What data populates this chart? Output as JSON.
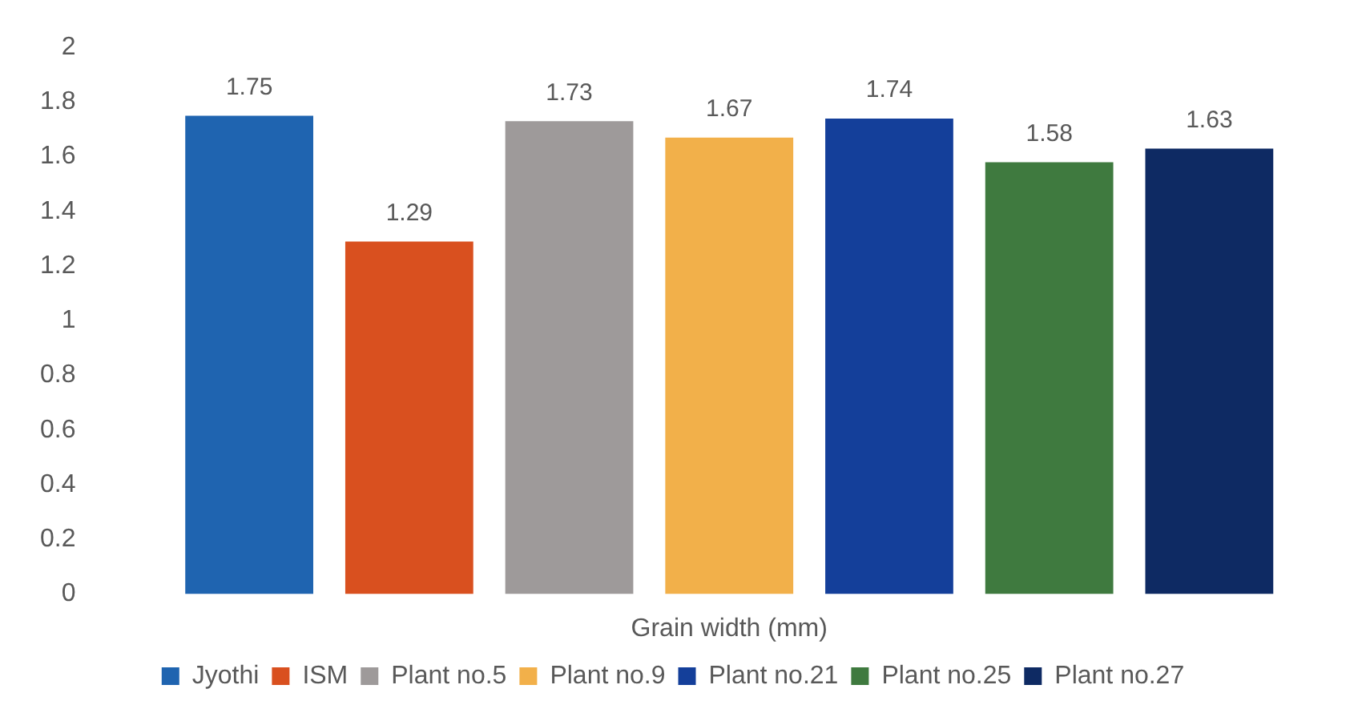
{
  "chart_data": {
    "type": "bar",
    "xlabel": "Grain width (mm)",
    "categories": [
      null
    ],
    "series": [
      {
        "name": "Jyothi",
        "color": "#1f64b0",
        "values": [
          1.75
        ]
      },
      {
        "name": "ISM",
        "color": "#d9501f",
        "values": [
          1.29
        ]
      },
      {
        "name": "Plant no.5",
        "color": "#9e9a9a",
        "values": [
          1.73
        ]
      },
      {
        "name": "Plant no.9",
        "color": "#f2b04a",
        "values": [
          1.67
        ]
      },
      {
        "name": "Plant no.21",
        "color": "#143f9a",
        "values": [
          1.74
        ]
      },
      {
        "name": "Plant no.25",
        "color": "#3f7a3f",
        "values": [
          1.58
        ]
      },
      {
        "name": "Plant no.27",
        "color": "#0e2a63",
        "values": [
          1.63
        ]
      }
    ],
    "ylim": [
      0,
      2
    ],
    "yticks": [
      0,
      0.2,
      0.4,
      0.6,
      0.8,
      1,
      1.2,
      1.4,
      1.6,
      1.8,
      2
    ],
    "grid": false,
    "legend": "bottom",
    "data_labels": true
  }
}
